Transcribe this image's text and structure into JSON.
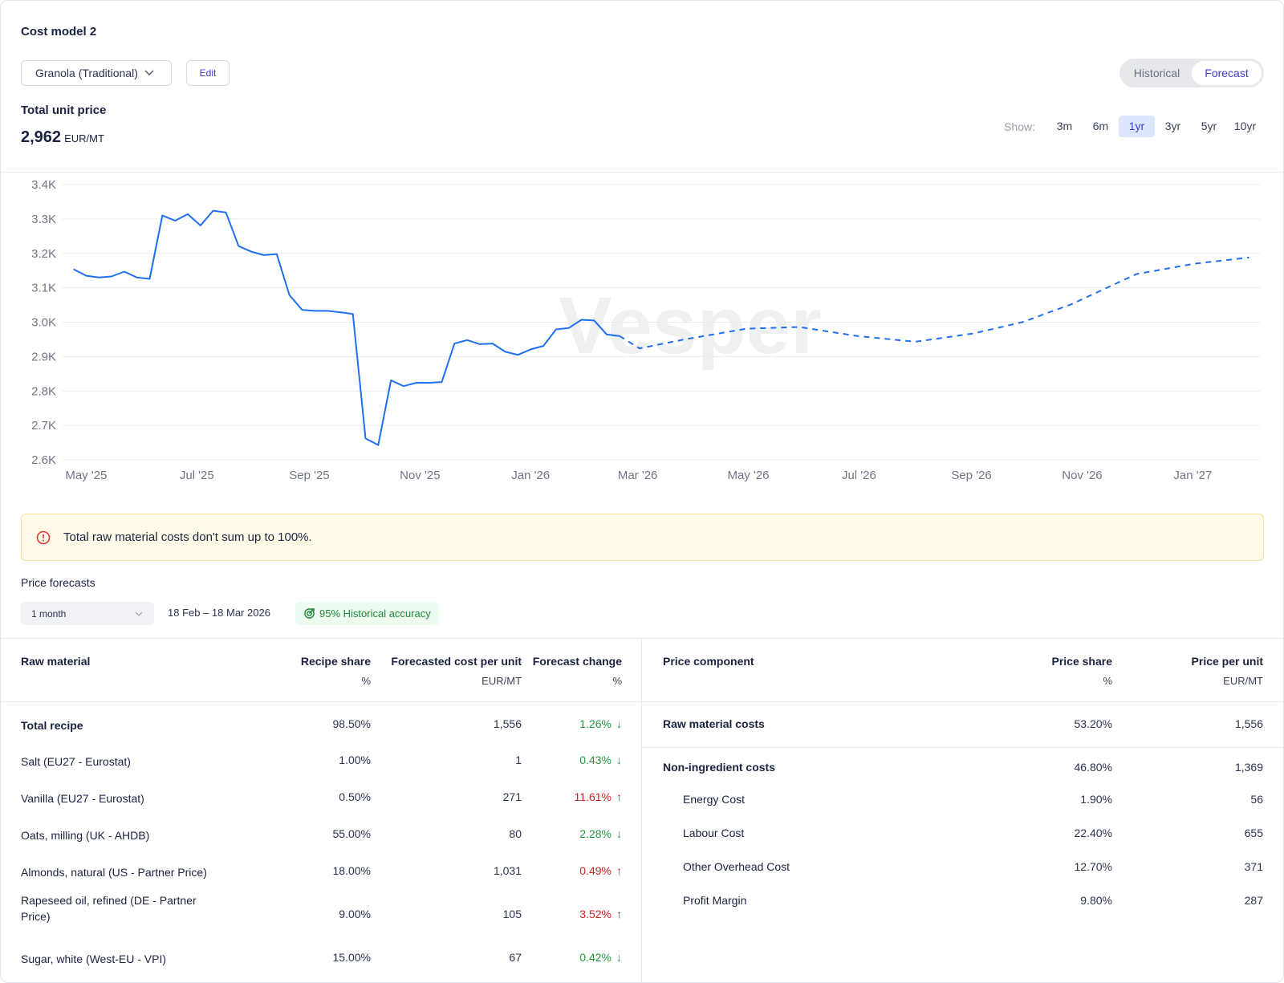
{
  "header": {
    "title": "Cost model 2",
    "product": "Granola (Traditional)",
    "edit_label": "Edit",
    "view_toggle": [
      {
        "label": "Historical",
        "active": false
      },
      {
        "label": "Forecast",
        "active": true
      }
    ]
  },
  "summary": {
    "label": "Total unit price",
    "value": "2,962",
    "unit": "EUR/MT"
  },
  "range_selector": {
    "label": "Show:",
    "options": [
      {
        "label": "3m",
        "active": false
      },
      {
        "label": "6m",
        "active": false
      },
      {
        "label": "1yr",
        "active": true
      },
      {
        "label": "3yr",
        "active": false
      },
      {
        "label": "5yr",
        "active": false
      },
      {
        "label": "10yr",
        "active": false
      }
    ]
  },
  "watermark": "Vesper",
  "chart_data": {
    "type": "line",
    "ylim": [
      2600,
      3400
    ],
    "xlim": [
      "2025-04-18",
      "2027-02-07"
    ],
    "grid": true,
    "y_ticks": [
      {
        "value": 3400,
        "label": "3.4K"
      },
      {
        "value": 3300,
        "label": "3.3K"
      },
      {
        "value": 3200,
        "label": "3.2K"
      },
      {
        "value": 3100,
        "label": "3.1K"
      },
      {
        "value": 3000,
        "label": "3.0K"
      },
      {
        "value": 2900,
        "label": "2.9K"
      },
      {
        "value": 2800,
        "label": "2.8K"
      },
      {
        "value": 2700,
        "label": "2.7K"
      },
      {
        "value": 2600,
        "label": "2.6K"
      }
    ],
    "x_ticks": [
      {
        "date": "2025-05-01",
        "label": "May '25"
      },
      {
        "date": "2025-07-01",
        "label": "Jul '25"
      },
      {
        "date": "2025-09-01",
        "label": "Sep '25"
      },
      {
        "date": "2025-11-01",
        "label": "Nov '25"
      },
      {
        "date": "2026-01-01",
        "label": "Jan '26"
      },
      {
        "date": "2026-03-01",
        "label": "Mar '26"
      },
      {
        "date": "2026-05-01",
        "label": "May '26"
      },
      {
        "date": "2026-07-01",
        "label": "Jul '26"
      },
      {
        "date": "2026-09-01",
        "label": "Sep '26"
      },
      {
        "date": "2026-11-01",
        "label": "Nov '26"
      },
      {
        "date": "2027-01-01",
        "label": "Jan '27"
      }
    ],
    "color": "#1f6ff2",
    "series": [
      {
        "style": "solid",
        "start": "2025-04-24",
        "step_days": 7,
        "values": [
          3154,
          3135,
          3130,
          3133,
          3147,
          3130,
          3126,
          3310,
          3295,
          3314,
          3281,
          3324,
          3319,
          3221,
          3205,
          3195,
          3198,
          3079,
          3036,
          3033,
          3033,
          3029,
          3024,
          2662,
          2643,
          2831,
          2814,
          2824,
          2824,
          2826,
          2938,
          2948,
          2936,
          2938,
          2914,
          2905,
          2921,
          2931,
          2979,
          2983,
          3007,
          3005,
          2964,
          2960
        ]
      },
      {
        "style": "dashed",
        "points": [
          [
            "2026-02-19",
            2960
          ],
          [
            "2026-03-02",
            2924
          ],
          [
            "2026-03-27",
            2950
          ],
          [
            "2026-04-30",
            2981
          ],
          [
            "2026-05-29",
            2986
          ],
          [
            "2026-06-30",
            2960
          ],
          [
            "2026-08-01",
            2943
          ],
          [
            "2026-09-02",
            2967
          ],
          [
            "2026-09-29",
            3000
          ],
          [
            "2026-10-26",
            3052
          ],
          [
            "2026-12-01",
            3140
          ],
          [
            "2027-01-02",
            3170
          ],
          [
            "2027-02-01",
            3188
          ]
        ]
      }
    ]
  },
  "alert": {
    "icon": "alert-circle-icon",
    "text": "Total raw material costs don't sum up to 100%.",
    "color": "#d93a3a"
  },
  "forecasts": {
    "label": "Price forecasts",
    "horizon": "1 month",
    "date_range": "18 Feb – 18 Mar 2026",
    "accuracy": "95% Historical accuracy"
  },
  "raw_table": {
    "headers": [
      {
        "label": "Raw material",
        "unit": ""
      },
      {
        "label": "Recipe share",
        "unit": "%"
      },
      {
        "label": "Forecasted cost per unit",
        "unit": "EUR/MT"
      },
      {
        "label": "Forecast change",
        "unit": "%"
      }
    ],
    "rows": [
      {
        "name": "Total recipe",
        "share": "98.50%",
        "cost": "1,556",
        "change": "1.26%",
        "dir": "down"
      },
      {
        "name": "Salt (EU27 - Eurostat)",
        "share": "1.00%",
        "cost": "1",
        "change": "0.43%",
        "dir": "down"
      },
      {
        "name": "Vanilla (EU27 - Eurostat)",
        "share": "0.50%",
        "cost": "271",
        "change": "11.61%",
        "dir": "up"
      },
      {
        "name": "Oats, milling (UK - AHDB)",
        "share": "55.00%",
        "cost": "80",
        "change": "2.28%",
        "dir": "down"
      },
      {
        "name": "Almonds, natural (US - Partner Price)",
        "share": "18.00%",
        "cost": "1,031",
        "change": "0.49%",
        "dir": "up"
      },
      {
        "name": "Rapeseed oil, refined (DE - Partner Price)",
        "share": "9.00%",
        "cost": "105",
        "change": "3.52%",
        "dir": "up"
      },
      {
        "name": "Sugar, white (West-EU - VPI)",
        "share": "15.00%",
        "cost": "67",
        "change": "0.42%",
        "dir": "down"
      }
    ]
  },
  "price_table": {
    "headers": [
      {
        "label": "Price component",
        "unit": ""
      },
      {
        "label": "Price share",
        "unit": "%"
      },
      {
        "label": "Price per unit",
        "unit": "EUR/MT"
      }
    ],
    "rows": [
      {
        "name": "Raw material costs",
        "share": "53.20%",
        "price": "1,556",
        "level": 0
      },
      {
        "name": "Non-ingredient costs",
        "share": "46.80%",
        "price": "1,369",
        "level": 0
      },
      {
        "name": "Energy Cost",
        "share": "1.90%",
        "price": "56",
        "level": 1
      },
      {
        "name": "Labour Cost",
        "share": "22.40%",
        "price": "655",
        "level": 1
      },
      {
        "name": "Other Overhead Cost",
        "share": "12.70%",
        "price": "371",
        "level": 1
      },
      {
        "name": "Profit Margin",
        "share": "9.80%",
        "price": "287",
        "level": 1
      }
    ]
  }
}
